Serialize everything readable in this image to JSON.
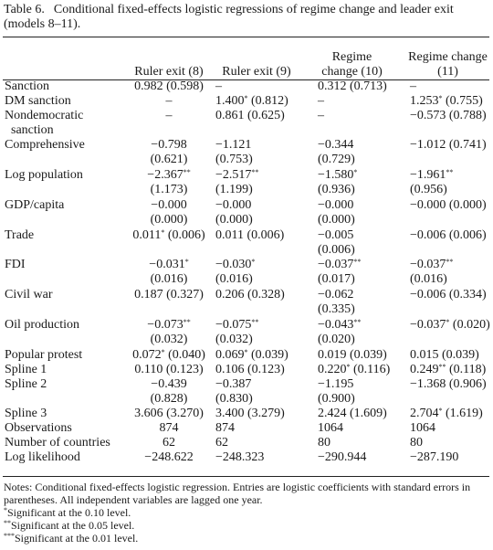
{
  "caption": {
    "label": "Table 6.",
    "text": "Conditional fixed-effects logistic regressions of regime change and leader exit (models 8–11)."
  },
  "columns": [
    "",
    "Ruler exit (8)",
    "Ruler exit (9)",
    "Regime\nchange (10)",
    "Regime change\n(11)"
  ],
  "rows": [
    {
      "label": "Sanction",
      "cells": [
        "0.982 (0.598)",
        "–",
        "0.312 (0.713)",
        "–"
      ]
    },
    {
      "label": "DM sanction",
      "cells": [
        "–",
        "1.400* (0.812)",
        "–",
        "1.253* (0.755)"
      ]
    },
    {
      "label": "Nondemocratic\n  sanction",
      "cells": [
        "–",
        "0.861 (0.625)",
        "–",
        "−0.573 (0.788)"
      ]
    },
    {
      "label": "Comprehensive",
      "cells": [
        "−0.798\n(0.621)",
        "−1.121\n(0.753)",
        "−0.344\n(0.729)",
        "−1.012 (0.741)"
      ]
    },
    {
      "label": "Log population",
      "cells": [
        "−2.367**\n(1.173)",
        "−2.517**\n(1.199)",
        "−1.580*\n(0.936)",
        "−1.961**\n(0.956)"
      ]
    },
    {
      "label": "GDP/capita",
      "cells": [
        "−0.000\n(0.000)",
        "−0.000\n(0.000)",
        "−0.000\n(0.000)",
        "−0.000 (0.000)"
      ]
    },
    {
      "label": "Trade",
      "cells": [
        "0.011* (0.006)",
        "0.011 (0.006)",
        "−0.005\n(0.006)",
        "−0.006 (0.006)"
      ]
    },
    {
      "label": "FDI",
      "cells": [
        "−0.031*\n(0.016)",
        "−0.030*\n(0.016)",
        "−0.037**\n(0.017)",
        "−0.037**\n(0.016)"
      ]
    },
    {
      "label": "Civil war",
      "cells": [
        "0.187 (0.327)",
        "0.206 (0.328)",
        "−0.062\n(0.335)",
        "−0.006 (0.334)"
      ]
    },
    {
      "label": "Oil production",
      "cells": [
        "−0.073**\n(0.032)",
        "−0.075**\n(0.032)",
        "−0.043**\n(0.020)",
        "−0.037* (0.020)"
      ]
    },
    {
      "label": "Popular protest",
      "cells": [
        "0.072* (0.040)",
        "0.069* (0.039)",
        "0.019 (0.039)",
        "0.015 (0.039)"
      ]
    },
    {
      "label": "Spline 1",
      "cells": [
        "0.110 (0.123)",
        "0.106 (0.123)",
        "0.220* (0.116)",
        "0.249** (0.118)"
      ]
    },
    {
      "label": "Spline 2",
      "cells": [
        "−0.439\n(0.828)",
        "−0.387\n(0.830)",
        "−1.195\n(0.900)",
        "−1.368 (0.906)"
      ]
    },
    {
      "label": "Spline 3",
      "cells": [
        "3.606 (3.270)",
        "3.400 (3.279)",
        "2.424 (1.609)",
        "2.704* (1.619)"
      ]
    },
    {
      "label": "Observations",
      "cells": [
        "874",
        "874",
        "1064",
        "1064"
      ]
    },
    {
      "label": "Number of countries",
      "cells": [
        "62",
        "62",
        "80",
        "80"
      ]
    },
    {
      "label": "Log likelihood",
      "cells": [
        "−248.622",
        "−248.323",
        "−290.944",
        "−287.190"
      ]
    }
  ],
  "notes": [
    "Notes: Conditional fixed-effects logistic regression. Entries are logistic coefficients with standard errors in parentheses. All independent variables are lagged one year.",
    "*Significant at the 0.10 level.",
    "**Significant at the 0.05 level.",
    "***Significant at the 0.01 level."
  ]
}
